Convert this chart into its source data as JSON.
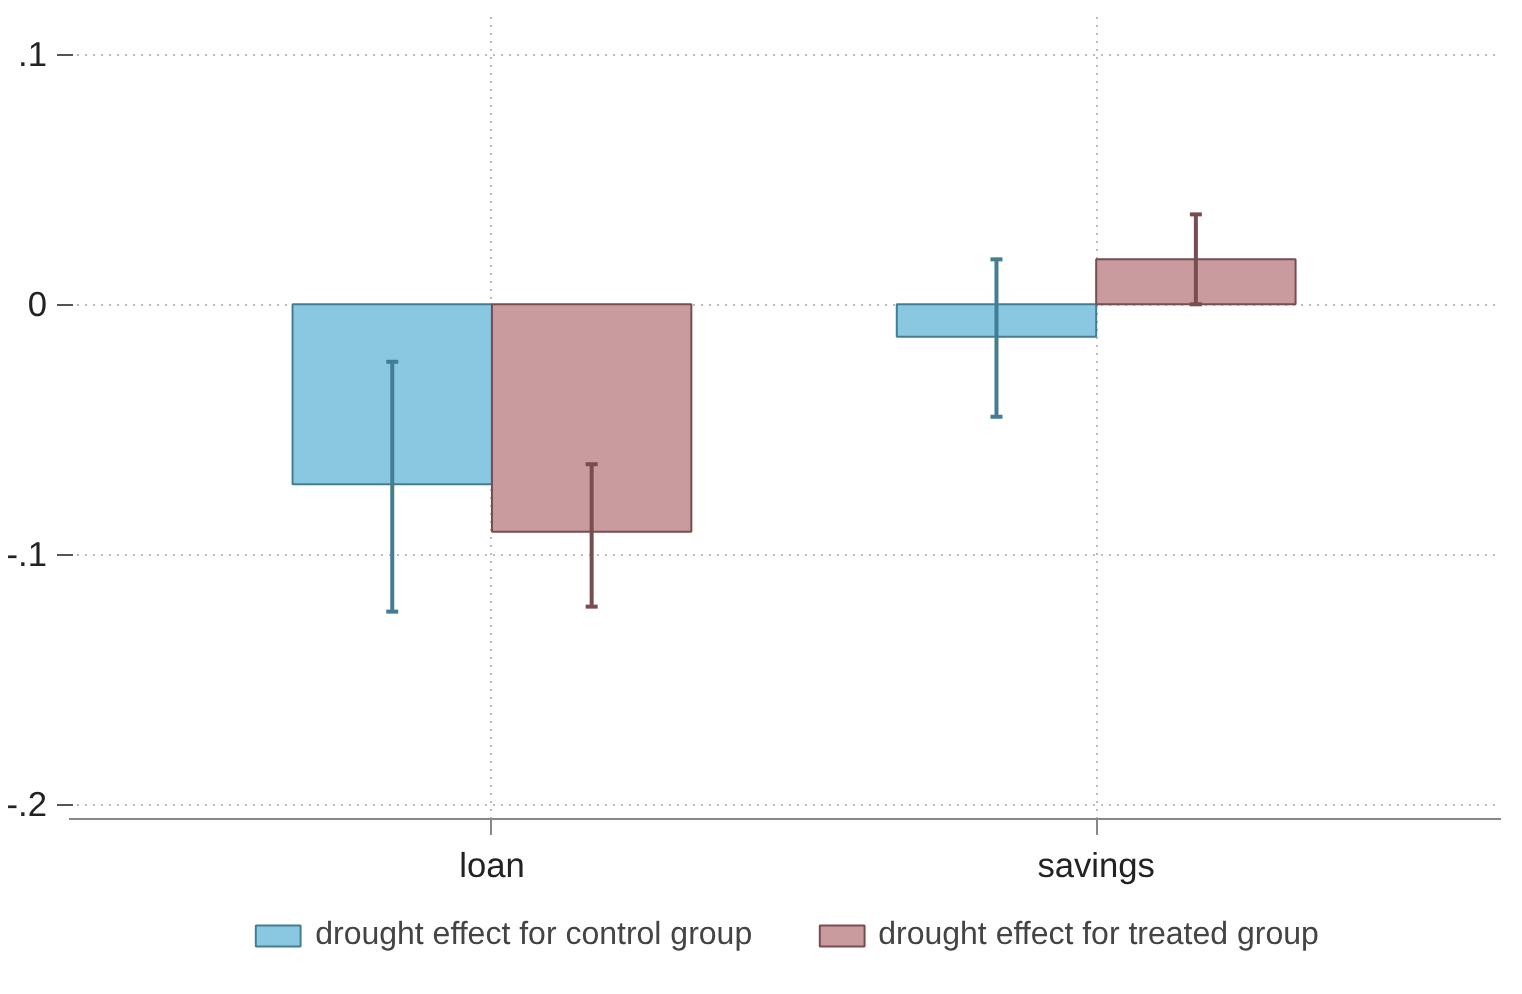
{
  "chart_data": {
    "type": "bar",
    "categories": [
      "loan",
      "savings"
    ],
    "series": [
      {
        "name": "drought effect for control group",
        "color": "#89c8e0",
        "values": [
          -0.072,
          -0.013
        ],
        "errors": [
          [
            -0.123,
            -0.023
          ],
          [
            -0.045,
            0.018
          ]
        ]
      },
      {
        "name": "drought effect for treated group",
        "color": "#c99b9e",
        "values": [
          -0.091,
          0.018
        ],
        "errors": [
          [
            -0.121,
            -0.064
          ],
          [
            0.0,
            0.036
          ]
        ]
      }
    ],
    "ylim": [
      -0.206,
      0.115
    ],
    "yticks": [
      {
        "value": 0.1,
        "label": ".1"
      },
      {
        "value": 0,
        "label": "0"
      },
      {
        "value": -0.1,
        "label": "-.1"
      },
      {
        "value": -0.2,
        "label": "-.2"
      }
    ],
    "grid": true,
    "legend": "bottom"
  }
}
